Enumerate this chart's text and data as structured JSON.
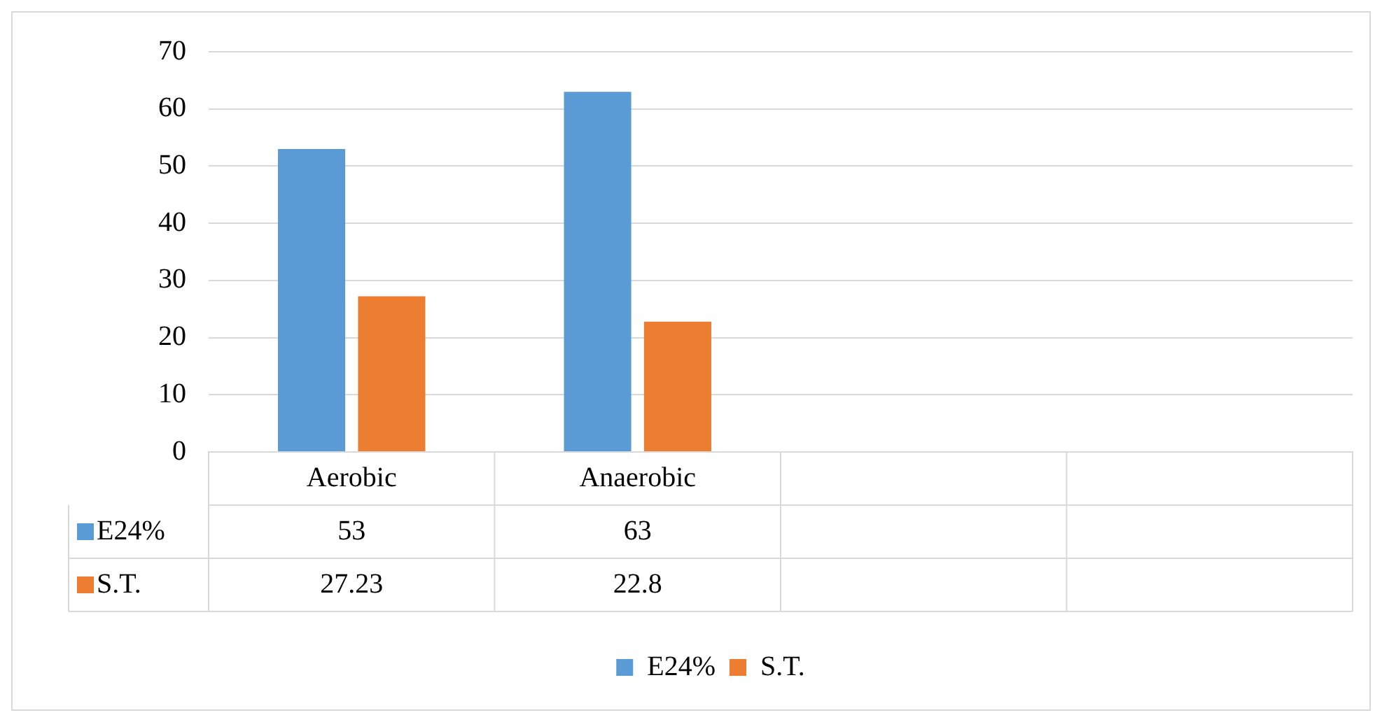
{
  "chart_data": {
    "type": "bar",
    "categories": [
      "Aerobic",
      "Anaerobic",
      null,
      null
    ],
    "series": [
      {
        "name": "E24%",
        "color": "#5b9bd5",
        "values": [
          53,
          63,
          null,
          null
        ]
      },
      {
        "name": "S.T.",
        "color": "#ed7d31",
        "values": [
          27.23,
          22.8,
          null,
          null
        ]
      }
    ],
    "ylim": [
      0,
      70
    ],
    "yticks": [
      0,
      10,
      20,
      30,
      40,
      50,
      60,
      70
    ],
    "grid": "y",
    "legend": "bottom",
    "data_labels": true
  }
}
